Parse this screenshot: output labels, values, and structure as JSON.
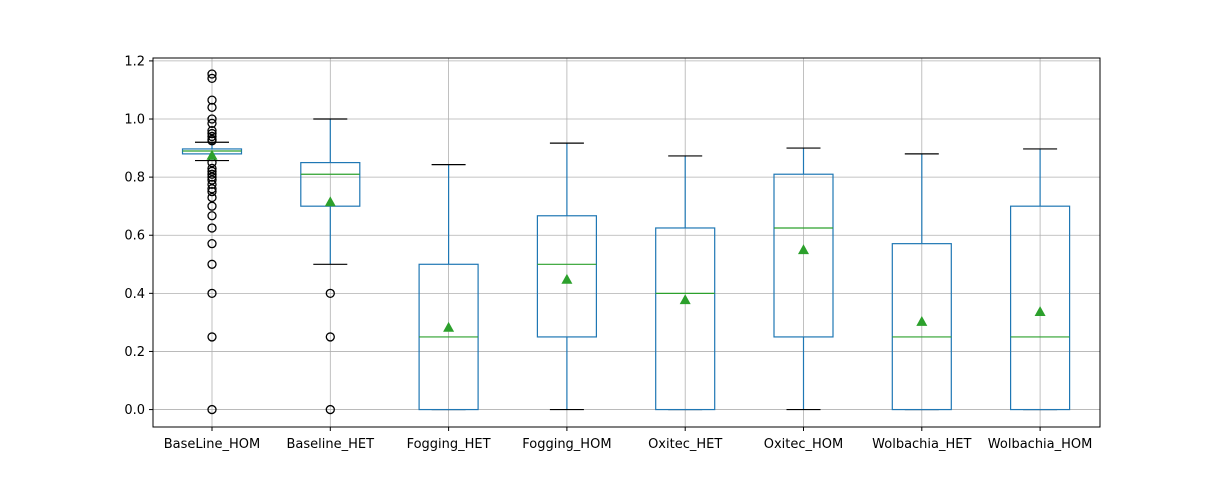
{
  "chart_data": {
    "type": "box",
    "categories": [
      "BaseLine_HOM",
      "Baseline_HET",
      "Fogging_HET",
      "Fogging_HOM",
      "Oxitec_HET",
      "Oxitec_HOM",
      "Wolbachia_HET",
      "Wolbachia_HOM"
    ],
    "ylim": [
      -0.06,
      1.21
    ],
    "yticks": [
      0.0,
      0.2,
      0.4,
      0.6,
      0.8,
      1.0,
      1.2
    ],
    "ytick_labels": [
      "0.0",
      "0.2",
      "0.4",
      "0.6",
      "0.8",
      "1.0",
      "1.2"
    ],
    "grid": true,
    "title": "",
    "xlabel": "",
    "ylabel": "",
    "boxes": [
      {
        "q1": 0.88,
        "median": 0.89,
        "q3": 0.897,
        "whisker_low": 0.857,
        "whisker_high": 0.92,
        "mean": 0.875,
        "outliers": [
          1.155,
          1.14,
          1.065,
          1.04,
          1.0,
          0.985,
          0.96,
          0.95,
          0.94,
          0.93,
          0.925,
          0.85,
          0.83,
          0.82,
          0.81,
          0.8,
          0.79,
          0.775,
          0.76,
          0.75,
          0.73,
          0.7,
          0.667,
          0.625,
          0.571,
          0.5,
          0.4,
          0.25,
          0.0
        ]
      },
      {
        "q1": 0.7,
        "median": 0.81,
        "q3": 0.85,
        "whisker_low": 0.5,
        "whisker_high": 1.0,
        "mean": 0.715,
        "outliers": [
          0.4,
          0.25,
          0.0
        ]
      },
      {
        "q1": 0.0,
        "median": 0.25,
        "q3": 0.5,
        "whisker_low": 0.0,
        "whisker_high": 0.843,
        "mean": 0.283,
        "outliers": []
      },
      {
        "q1": 0.25,
        "median": 0.5,
        "q3": 0.667,
        "whisker_low": 0.0,
        "whisker_high": 0.917,
        "mean": 0.448,
        "outliers": []
      },
      {
        "q1": 0.0,
        "median": 0.4,
        "q3": 0.625,
        "whisker_low": 0.0,
        "whisker_high": 0.873,
        "mean": 0.378,
        "outliers": []
      },
      {
        "q1": 0.25,
        "median": 0.625,
        "q3": 0.81,
        "whisker_low": 0.0,
        "whisker_high": 0.9,
        "mean": 0.55,
        "outliers": []
      },
      {
        "q1": 0.0,
        "median": 0.25,
        "q3": 0.571,
        "whisker_low": 0.0,
        "whisker_high": 0.88,
        "mean": 0.303,
        "outliers": []
      },
      {
        "q1": 0.0,
        "median": 0.25,
        "q3": 0.7,
        "whisker_low": 0.0,
        "whisker_high": 0.897,
        "mean": 0.337,
        "outliers": []
      }
    ],
    "colors": {
      "box": "#1f77b4",
      "median": "#2ca02c",
      "mean": "#2ca02c",
      "whisker_cap": "#000000",
      "flier": "#000000",
      "grid": "#b0b0b0",
      "axes": "#000000"
    }
  }
}
